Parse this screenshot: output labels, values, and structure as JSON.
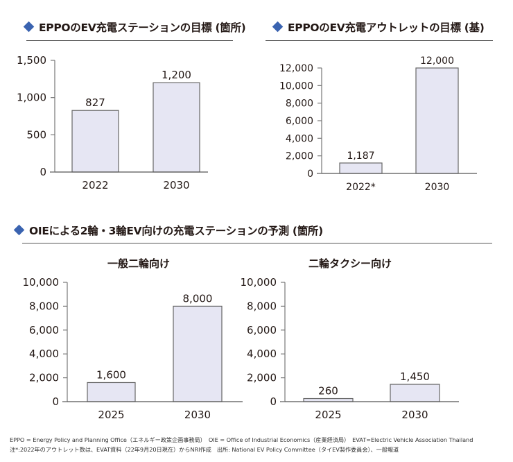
{
  "colors": {
    "accent": "#3a63b0",
    "bar_fill": "#e6e6f3",
    "bar_stroke": "#666666",
    "axis": "#777777",
    "text": "#231815"
  },
  "sections": {
    "eppo_stations_title": "EPPOのEV充電ステーションの目標 (箇所)",
    "eppo_outlets_title": "EPPOのEV充電アウトレットの目標 (基)",
    "oie_title": "OIEによる2輪・3輪EV向けの充電ステーションの予測 (箇所)",
    "oie_general_subtitle": "一般二輪向け",
    "oie_taxi_subtitle": "二輪タクシー向け"
  },
  "footnotes": {
    "line1": "EPPO = Energy Policy and Planning Office（エネルギー政策企画事務局）　OIE = Office of Industrial Economics（産業経済局）　EVAT=Electric Vehicle Association Thailand",
    "line2": "注*:2022年のアウトレット数は、EVAT資料（22年9月20日現在）からNRI作成　出所: National EV Policy Committee（タイEV製作委員会）、一般報道"
  },
  "chart_data": [
    {
      "id": "eppo_stations",
      "type": "bar",
      "title": "EPPOのEV充電ステーションの目標 (箇所)",
      "xlabel": "",
      "ylabel": "",
      "categories": [
        "2022",
        "2030"
      ],
      "values": [
        827,
        1200
      ],
      "value_labels": [
        "827",
        "1,200"
      ],
      "ylim": [
        0,
        1500
      ],
      "yticks": [
        0,
        500,
        1000,
        1500
      ],
      "ytick_labels": [
        "0",
        "500",
        "1,000",
        "1,500"
      ],
      "grid": false
    },
    {
      "id": "eppo_outlets",
      "type": "bar",
      "title": "EPPOのEV充電アウトレットの目標 (基)",
      "xlabel": "",
      "ylabel": "",
      "categories": [
        "2022*",
        "2030"
      ],
      "values": [
        1187,
        12000
      ],
      "value_labels": [
        "1,187",
        "12,000"
      ],
      "ylim": [
        0,
        12000
      ],
      "yticks": [
        0,
        2000,
        4000,
        6000,
        8000,
        10000,
        12000
      ],
      "ytick_labels": [
        "0",
        "2,000",
        "4,000",
        "6,000",
        "8,000",
        "10,000",
        "12,000"
      ],
      "grid": false
    },
    {
      "id": "oie_general",
      "type": "bar",
      "title": "一般二輪向け",
      "xlabel": "",
      "ylabel": "",
      "categories": [
        "2025",
        "2030"
      ],
      "values": [
        1600,
        8000
      ],
      "value_labels": [
        "1,600",
        "8,000"
      ],
      "ylim": [
        0,
        10000
      ],
      "yticks": [
        0,
        2000,
        4000,
        6000,
        8000,
        10000
      ],
      "ytick_labels": [
        "0",
        "2,000",
        "4,000",
        "6,000",
        "8,000",
        "10,000"
      ],
      "grid": false
    },
    {
      "id": "oie_taxi",
      "type": "bar",
      "title": "二輪タクシー向け",
      "xlabel": "",
      "ylabel": "",
      "categories": [
        "2025",
        "2030"
      ],
      "values": [
        260,
        1450
      ],
      "value_labels": [
        "260",
        "1,450"
      ],
      "ylim": [
        0,
        10000
      ],
      "yticks": [
        0,
        2000,
        4000,
        6000,
        8000,
        10000
      ],
      "ytick_labels": [
        "0",
        "2,000",
        "4,000",
        "6,000",
        "8,000",
        "10,000"
      ],
      "grid": false
    }
  ]
}
